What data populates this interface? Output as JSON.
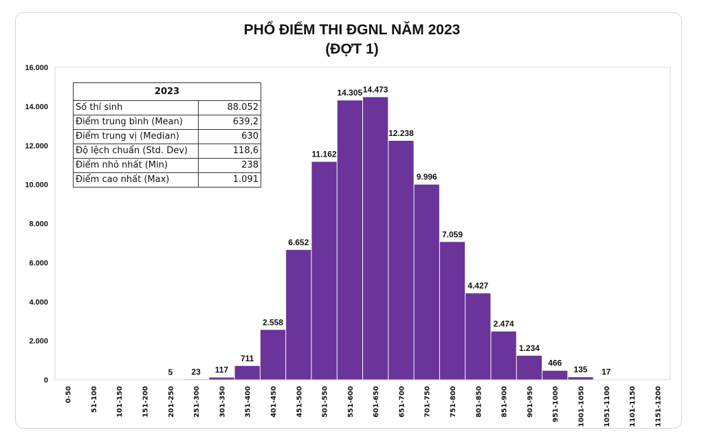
{
  "chart_data": {
    "type": "bar",
    "title": "PHỔ ĐIỂM THI ĐGNL NĂM 2023",
    "subtitle": "(ĐỢT 1)",
    "categories": [
      "0-50",
      "51-100",
      "101-150",
      "151-200",
      "201-250",
      "251-300",
      "301-350",
      "351-400",
      "401-450",
      "451-500",
      "501-550",
      "551-600",
      "601-650",
      "651-700",
      "701-750",
      "751-800",
      "801-850",
      "851-900",
      "901-950",
      "951-1000",
      "1001-1050",
      "1051-1100",
      "1101-1150",
      "1151-1200"
    ],
    "values": [
      0,
      0,
      0,
      0,
      5,
      23,
      117,
      711,
      2558,
      6652,
      11162,
      14305,
      14473,
      12238,
      9996,
      7059,
      4427,
      2474,
      1234,
      466,
      135,
      17,
      0,
      0
    ],
    "ylim": [
      0,
      16000
    ],
    "yticks": [
      0,
      2000,
      4000,
      6000,
      8000,
      10000,
      12000,
      14000,
      16000
    ],
    "ytick_labels": [
      "0",
      "2.000",
      "4.000",
      "6.000",
      "8.000",
      "10.000",
      "12.000",
      "14.000",
      "16.000"
    ],
    "xlabel": "",
    "ylabel": "",
    "bar_color": "#6a349a",
    "grid": false
  },
  "stats_table": {
    "header": "2023",
    "rows": [
      {
        "label": "Số thí sinh",
        "value": "88.052"
      },
      {
        "label": "Điểm trung bình (Mean)",
        "value": "639,2"
      },
      {
        "label": "Điểm trung vị (Median)",
        "value": "630"
      },
      {
        "label": "Độ lệch chuẩn (Std. Dev)",
        "value": "118,6"
      },
      {
        "label": "Điểm nhỏ nhất (Min)",
        "value": "238"
      },
      {
        "label": "Điểm cao nhất (Max)",
        "value": "1.091"
      }
    ]
  }
}
